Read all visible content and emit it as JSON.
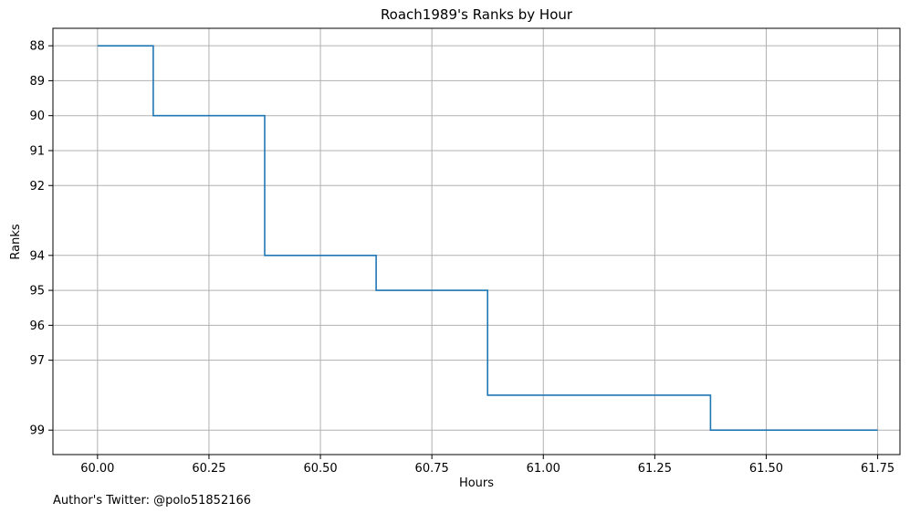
{
  "chart_data": {
    "type": "line",
    "step": "post",
    "title": "Roach1989's Ranks by Hour",
    "xlabel": "Hours",
    "ylabel": "Ranks",
    "footer": "Author's Twitter: @polo51852166",
    "xlim": [
      59.9,
      61.8
    ],
    "ylim": [
      99.7,
      87.5
    ],
    "y_inverted": true,
    "grid": true,
    "line_color": "#1f77b4",
    "xticks": [
      60.0,
      60.25,
      60.5,
      60.75,
      61.0,
      61.25,
      61.5,
      61.75
    ],
    "xtick_labels": [
      "60.00",
      "60.25",
      "60.50",
      "60.75",
      "61.00",
      "61.25",
      "61.50",
      "61.75"
    ],
    "yticks": [
      88,
      89,
      90,
      91,
      92,
      94,
      95,
      96,
      97,
      99
    ],
    "ytick_labels": [
      "88",
      "89",
      "90",
      "91",
      "92",
      "94",
      "95",
      "96",
      "97",
      "99"
    ],
    "series": [
      {
        "x": [
          60.0,
          60.125,
          60.375,
          60.625,
          60.875,
          61.375,
          61.75
        ],
        "y": [
          88,
          90,
          94,
          95,
          98,
          99,
          99
        ]
      }
    ]
  }
}
